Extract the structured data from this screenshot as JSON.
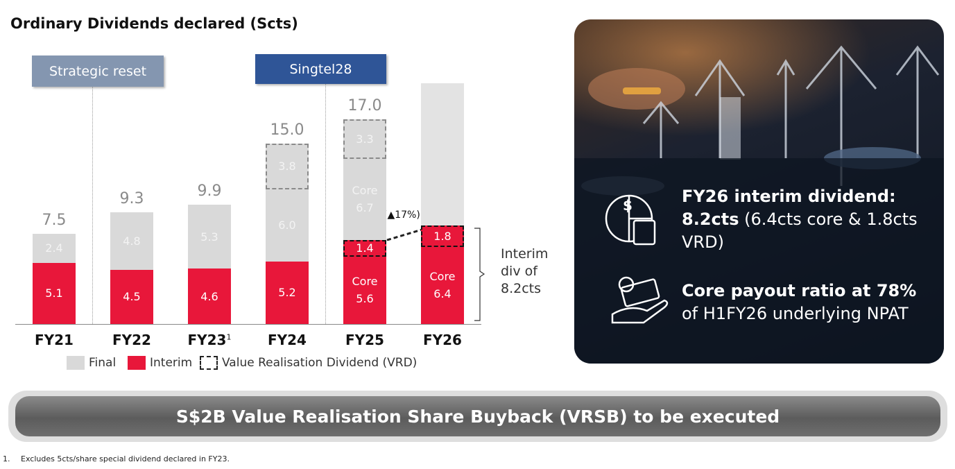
{
  "chart_data": {
    "type": "stacked-bar",
    "title": "Ordinary Dividends declared (Scts)",
    "categories": [
      "FY21",
      "FY22",
      "FY23",
      "FY24",
      "FY25",
      "FY26"
    ],
    "category_superscripts": [
      null,
      null,
      "1",
      null,
      null,
      null
    ],
    "ylim": [
      0,
      20
    ],
    "series": [
      {
        "name": "Interim",
        "color": "#e8173a",
        "values": [
          5.1,
          4.5,
          4.6,
          5.2,
          5.6,
          6.4
        ],
        "value_labels": [
          "5.1",
          "4.5",
          "4.6",
          "5.2",
          "Core 5.6",
          "Core 6.4"
        ]
      },
      {
        "color": "#e8173a",
        "dashed": true,
        "values": [
          null,
          null,
          null,
          null,
          1.4,
          1.8
        ]
      },
      {
        "name": "Final",
        "color": "#d9d9d9",
        "values": [
          2.4,
          4.8,
          5.3,
          6.0,
          6.7,
          null
        ],
        "value_labels": [
          "2.4",
          "4.8",
          "5.3",
          "6.0",
          "Core 6.7",
          null
        ]
      },
      {
        "color": "#d9d9d9",
        "dashed": true,
        "values": [
          null,
          null,
          null,
          3.8,
          3.3,
          null
        ]
      }
    ],
    "totals": [
      7.5,
      9.3,
      9.9,
      15.0,
      17.0,
      null
    ],
    "total_labels": [
      "7.5",
      "9.3",
      "9.9",
      "15.0",
      "17.0",
      null
    ],
    "vrd_legend": "Value Realisation Dividend (VRD)",
    "phases": [
      "Strategic reset",
      "Singtel28"
    ],
    "growth_annotation": "(▲17%)",
    "bracket_annotation": "Interim div of 8.2cts"
  },
  "right_panel": {
    "items": [
      {
        "title": "FY26 interim dividend:",
        "highlight": "8.2cts",
        "detail": "(6.4cts core & 1.8cts VRD)"
      },
      {
        "title": "Core payout ratio at 78%",
        "detail": "of H1FY26 underlying NPAT"
      }
    ]
  },
  "banner": "S$2B Value Realisation Share Buyback (VRSB) to be executed",
  "footnote": {
    "number": "1.",
    "text": "Excludes 5cts/share special dividend declared in FY23."
  }
}
